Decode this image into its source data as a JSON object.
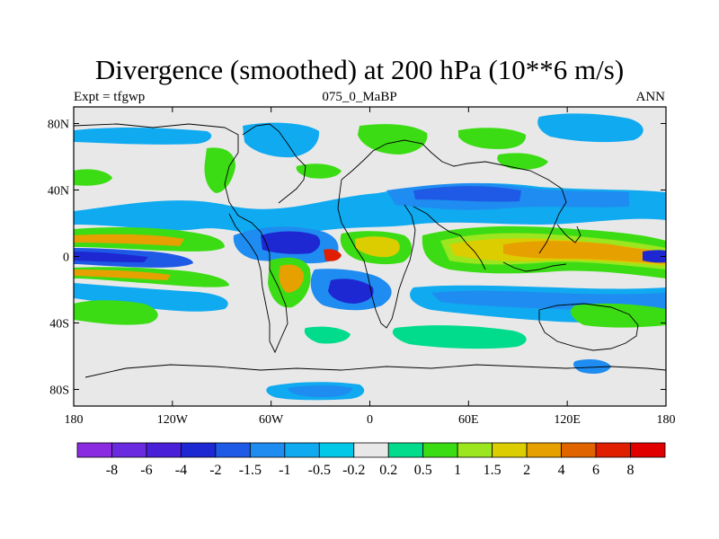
{
  "title": "Divergence (smoothed) at 200 hPa (10**6 m/s)",
  "experiment_label": "Expt = tfgwp",
  "case_label": "075_0_MaBP",
  "period_label": "ANN",
  "lat_ticks": [
    {
      "lat": 80,
      "label": "80N"
    },
    {
      "lat": 40,
      "label": "40N"
    },
    {
      "lat": 0,
      "label": "0"
    },
    {
      "lat": -40,
      "label": "40S"
    },
    {
      "lat": -80,
      "label": "80S"
    }
  ],
  "lon_ticks": [
    {
      "lon": -180,
      "label": "180"
    },
    {
      "lon": -120,
      "label": "120W"
    },
    {
      "lon": -60,
      "label": "60W"
    },
    {
      "lon": 0,
      "label": "0"
    },
    {
      "lon": 60,
      "label": "60E"
    },
    {
      "lon": 120,
      "label": "120E"
    },
    {
      "lon": 180,
      "label": "180"
    }
  ],
  "colorbar": {
    "labels": [
      "-8",
      "-6",
      "-4",
      "-2",
      "-1.5",
      "-1",
      "-0.5",
      "-0.2",
      "0.2",
      "0.5",
      "1",
      "1.5",
      "2",
      "4",
      "6",
      "8"
    ],
    "colors": [
      "#8a2be2",
      "#6a2be0",
      "#4a1fd8",
      "#1e28d2",
      "#1e5ae6",
      "#1e8cf0",
      "#10aaf0",
      "#00c8e6",
      "#e8e8e8",
      "#00dc8c",
      "#3cdc14",
      "#9be61e",
      "#dccd00",
      "#e6a000",
      "#e06400",
      "#e01e00",
      "#e00000"
    ]
  },
  "colors": {
    "background_neutral": "#e8e8e8",
    "coastline": "#000000"
  }
}
